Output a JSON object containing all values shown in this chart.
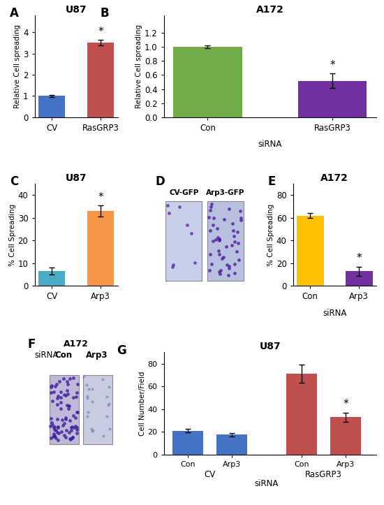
{
  "panelA": {
    "title": "U87",
    "ylabel": "Relative Cell spreading",
    "categories": [
      "CV",
      "RasGRP3"
    ],
    "values": [
      1.0,
      3.5
    ],
    "errors": [
      0.05,
      0.13
    ],
    "colors": [
      "#4472C4",
      "#C0504D"
    ],
    "star_idx": [
      1
    ],
    "ylim": [
      0,
      4.8
    ],
    "yticks": [
      0,
      1,
      2,
      3,
      4
    ]
  },
  "panelB": {
    "title": "A172",
    "ylabel": "Relative Cell spreading",
    "xlabel": "siRNA",
    "categories": [
      "Con",
      "RasGRP3"
    ],
    "values": [
      1.0,
      0.52
    ],
    "errors": [
      0.02,
      0.1
    ],
    "colors": [
      "#70AD47",
      "#7030A0"
    ],
    "star_idx": [
      1
    ],
    "ylim": [
      0,
      1.45
    ],
    "yticks": [
      0,
      0.2,
      0.4,
      0.6,
      0.8,
      1.0,
      1.2
    ]
  },
  "panelC": {
    "title": "U87",
    "ylabel": "% Cell Spreading",
    "categories": [
      "CV",
      "Arp3"
    ],
    "values": [
      6.5,
      33.0
    ],
    "errors": [
      1.5,
      2.5
    ],
    "colors": [
      "#4BACC6",
      "#F79646"
    ],
    "star_idx": [
      1
    ],
    "ylim": [
      0,
      45
    ],
    "yticks": [
      0,
      10,
      20,
      30,
      40
    ]
  },
  "panelD": {
    "labels": [
      "CV-GFP",
      "Arp3-GFP"
    ],
    "img_color_left": "#c8cfe8",
    "img_color_right": "#b8c0e0",
    "dot_color": "#5020a0"
  },
  "panelE": {
    "title": "A172",
    "ylabel": "% Cell Spreading",
    "xlabel": "siRNA",
    "categories": [
      "Con",
      "Arp3"
    ],
    "values": [
      62.0,
      13.0
    ],
    "errors": [
      2.0,
      4.0
    ],
    "colors": [
      "#FFC000",
      "#7030A0"
    ],
    "star_idx": [
      1
    ],
    "ylim": [
      0,
      90
    ],
    "yticks": [
      0,
      20,
      40,
      60,
      80
    ]
  },
  "panelF": {
    "title": "A172",
    "xlabel": "siRNA",
    "labels": [
      "Con",
      "Arp3"
    ],
    "img_color_left": "#c0b8d8",
    "img_color_right": "#c8cce0",
    "dot_color_left": "#4020a0",
    "dot_color_right": "#9080b0"
  },
  "panelG": {
    "title": "U87",
    "ylabel": "Cell Number/Field",
    "xlabel": "siRNA",
    "categories": [
      "Con",
      "Arp3",
      "Con",
      "Arp3"
    ],
    "group_labels": [
      "CV",
      "RasGRP3"
    ],
    "values": [
      21.0,
      17.5,
      71.0,
      33.0
    ],
    "errors": [
      1.5,
      1.5,
      8.0,
      4.0
    ],
    "colors": [
      "#4472C4",
      "#4472C4",
      "#C0504D",
      "#C0504D"
    ],
    "star_idx": [
      3
    ],
    "ylim": [
      0,
      90
    ],
    "yticks": [
      0,
      20,
      40,
      60,
      80
    ]
  }
}
